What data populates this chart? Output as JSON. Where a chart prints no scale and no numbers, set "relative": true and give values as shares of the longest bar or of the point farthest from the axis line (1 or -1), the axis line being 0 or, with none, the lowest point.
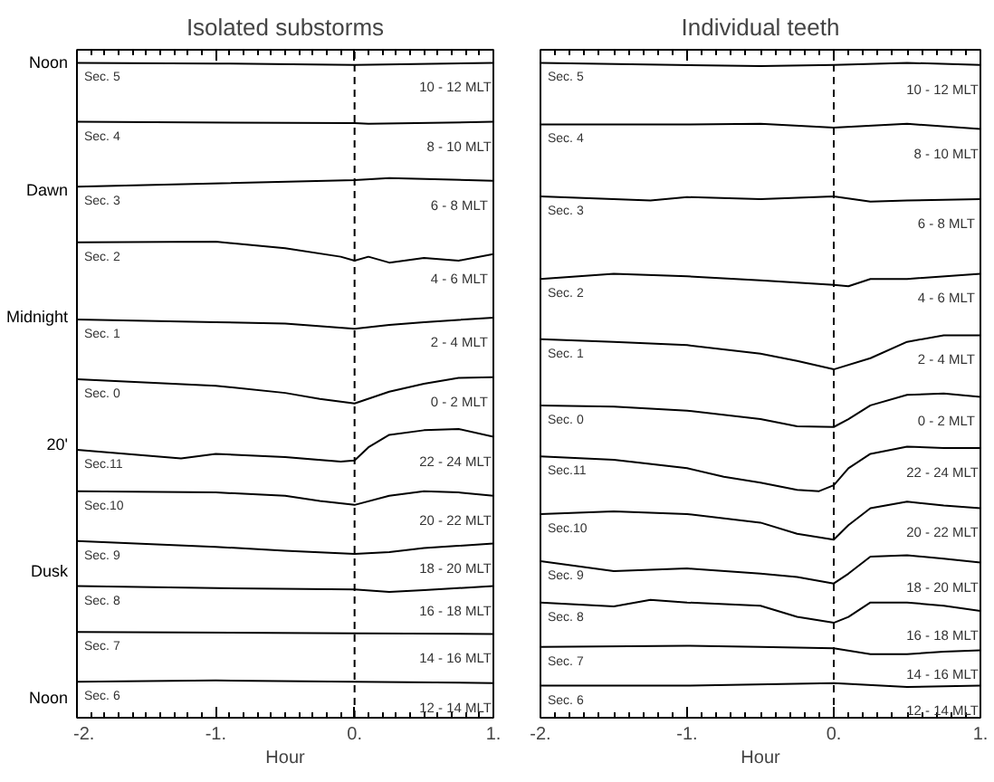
{
  "chart_data": [
    {
      "type": "line",
      "title": "Isolated substorms",
      "xlabel": "Hour",
      "relative": true,
      "xlim": [
        -2,
        1
      ],
      "xticks": [
        {
          "value": -2,
          "label": "-2."
        },
        {
          "value": -1,
          "label": "-1."
        },
        {
          "value": 0,
          "label": "0."
        },
        {
          "value": 1,
          "label": "1."
        }
      ],
      "tick_labels": "x",
      "line_style": "solid",
      "ref_lines": [
        {
          "axis": "x",
          "value": 0,
          "line_style": "dashed",
          "color": "#000000"
        }
      ],
      "series": [
        {
          "name": "Sec. 5",
          "color": "#000000",
          "x": [
            -2,
            -1,
            0,
            1
          ],
          "values": [
            1.0,
            0.999,
            0.997,
            1.0
          ]
        },
        {
          "name": "Sec. 4",
          "color": "#000000",
          "x": [
            -2,
            0,
            0.1,
            1
          ],
          "values": [
            0.91,
            0.908,
            0.907,
            0.91
          ]
        },
        {
          "name": "Sec. 3",
          "color": "#000000",
          "x": [
            -2,
            0,
            0.25,
            1
          ],
          "values": [
            0.811,
            0.821,
            0.824,
            0.82
          ]
        },
        {
          "name": "Sec. 2",
          "color": "#000000",
          "x": [
            -2,
            -1,
            -0.5,
            -0.1,
            0,
            0.1,
            0.25,
            0.5,
            0.75,
            1
          ],
          "values": [
            0.726,
            0.727,
            0.717,
            0.704,
            0.698,
            0.704,
            0.695,
            0.702,
            0.698,
            0.708
          ]
        },
        {
          "name": "Sec. 1",
          "color": "#000000",
          "x": [
            -2,
            -1,
            -0.5,
            0,
            0.25,
            0.5,
            1
          ],
          "values": [
            0.608,
            0.604,
            0.602,
            0.594,
            0.6,
            0.604,
            0.611
          ]
        },
        {
          "name": "Sec. 0",
          "color": "#000000",
          "x": [
            -2,
            -1,
            -0.5,
            -0.25,
            0,
            0.25,
            0.5,
            0.75,
            1
          ],
          "values": [
            0.517,
            0.507,
            0.496,
            0.487,
            0.48,
            0.498,
            0.51,
            0.519,
            0.52
          ]
        },
        {
          "name": "Sec.11",
          "color": "#000000",
          "x": [
            -2,
            -1.25,
            -1,
            -0.5,
            -0.1,
            0,
            0.1,
            0.25,
            0.5,
            0.75,
            1
          ],
          "values": [
            0.409,
            0.396,
            0.403,
            0.398,
            0.391,
            0.393,
            0.413,
            0.432,
            0.439,
            0.441,
            0.429
          ]
        },
        {
          "name": "Sec.10",
          "color": "#000000",
          "x": [
            -2,
            -1,
            -0.5,
            -0.25,
            0,
            0.25,
            0.5,
            0.75,
            1
          ],
          "values": [
            0.346,
            0.344,
            0.339,
            0.331,
            0.325,
            0.339,
            0.346,
            0.344,
            0.339
          ]
        },
        {
          "name": "Sec. 9",
          "color": "#000000",
          "x": [
            -2,
            -1,
            -0.5,
            0,
            0.25,
            0.5,
            1
          ],
          "values": [
            0.27,
            0.261,
            0.255,
            0.25,
            0.253,
            0.259,
            0.266
          ]
        },
        {
          "name": "Sec. 8",
          "color": "#000000",
          "x": [
            -2,
            -1,
            0,
            0.25,
            0.5,
            1
          ],
          "values": [
            0.201,
            0.198,
            0.196,
            0.192,
            0.195,
            0.201
          ]
        },
        {
          "name": "Sec. 7",
          "color": "#000000",
          "x": [
            -2,
            0,
            1
          ],
          "values": [
            0.131,
            0.129,
            0.128
          ]
        },
        {
          "name": "Sec. 6",
          "color": "#000000",
          "x": [
            -2,
            -1,
            0,
            1
          ],
          "values": [
            0.055,
            0.057,
            0.055,
            0.053
          ]
        }
      ],
      "annotations": [
        "10 - 12 MLT",
        "8 - 10 MLT",
        "6 -  8 MLT",
        "4 -  6 MLT",
        "2 -  4 MLT",
        "0 -  2 MLT",
        "22 - 24 MLT",
        "20 - 22 MLT",
        "18 - 20 MLT",
        "16 - 18 MLT",
        "14 - 16 MLT",
        "12 - 14 MLT",
        "Noon",
        "Dawn",
        "Midnight",
        "20'",
        "Dusk",
        "Noon"
      ]
    },
    {
      "type": "line",
      "title": "Individual teeth",
      "xlabel": "Hour",
      "relative": true,
      "xlim": [
        -2,
        1
      ],
      "xticks": [
        {
          "value": -2,
          "label": "-2."
        },
        {
          "value": -1,
          "label": "-1."
        },
        {
          "value": 0,
          "label": "0."
        },
        {
          "value": 1,
          "label": "1."
        }
      ],
      "tick_labels": "x",
      "line_style": "solid",
      "ref_lines": [
        {
          "axis": "x",
          "value": 0,
          "line_style": "dashed",
          "color": "#000000"
        }
      ],
      "series": [
        {
          "name": "Sec. 5",
          "color": "#000000",
          "x": [
            -2,
            -0.5,
            0,
            0.5,
            1
          ],
          "values": [
            1.0,
            0.995,
            0.997,
            1.0,
            0.997
          ]
        },
        {
          "name": "Sec. 4",
          "color": "#000000",
          "x": [
            -2,
            -1,
            -0.5,
            0,
            0.5,
            1
          ],
          "values": [
            0.906,
            0.906,
            0.907,
            0.901,
            0.907,
            0.899
          ]
        },
        {
          "name": "Sec. 3",
          "color": "#000000",
          "x": [
            -2,
            -1.25,
            -1,
            -0.5,
            0,
            0.25,
            0.5,
            1
          ],
          "values": [
            0.796,
            0.79,
            0.795,
            0.792,
            0.796,
            0.788,
            0.79,
            0.792
          ]
        },
        {
          "name": "Sec. 2",
          "color": "#000000",
          "x": [
            -2,
            -1.5,
            -1,
            -0.5,
            0,
            0.1,
            0.25,
            0.5,
            1
          ],
          "values": [
            0.67,
            0.678,
            0.674,
            0.668,
            0.661,
            0.659,
            0.67,
            0.67,
            0.678
          ]
        },
        {
          "name": "Sec. 1",
          "color": "#000000",
          "x": [
            -2,
            -1.5,
            -1,
            -0.5,
            -0.25,
            0,
            0.25,
            0.5,
            0.75,
            1
          ],
          "values": [
            0.578,
            0.574,
            0.569,
            0.556,
            0.545,
            0.532,
            0.549,
            0.574,
            0.584,
            0.584
          ]
        },
        {
          "name": "Sec. 0",
          "color": "#000000",
          "x": [
            -2,
            -1.5,
            -1,
            -0.5,
            -0.25,
            0,
            0.1,
            0.25,
            0.5,
            0.75,
            1
          ],
          "values": [
            0.477,
            0.475,
            0.469,
            0.456,
            0.445,
            0.444,
            0.456,
            0.477,
            0.493,
            0.495,
            0.49
          ]
        },
        {
          "name": "Sec.11",
          "color": "#000000",
          "x": [
            -2,
            -1.5,
            -1,
            -0.75,
            -0.5,
            -0.25,
            -0.1,
            0,
            0.1,
            0.25,
            0.5,
            0.75,
            1
          ],
          "values": [
            0.399,
            0.394,
            0.381,
            0.368,
            0.359,
            0.348,
            0.346,
            0.355,
            0.381,
            0.403,
            0.414,
            0.412,
            0.412
          ]
        },
        {
          "name": "Sec.10",
          "color": "#000000",
          "x": [
            -2,
            -1.5,
            -1,
            -0.5,
            -0.25,
            0,
            0.1,
            0.25,
            0.5,
            0.75,
            1
          ],
          "values": [
            0.311,
            0.315,
            0.311,
            0.298,
            0.281,
            0.272,
            0.294,
            0.32,
            0.33,
            0.324,
            0.32
          ]
        },
        {
          "name": "Sec. 9",
          "color": "#000000",
          "x": [
            -2,
            -1.5,
            -1,
            -0.5,
            -0.25,
            0,
            0.1,
            0.25,
            0.5,
            0.75,
            1
          ],
          "values": [
            0.239,
            0.224,
            0.228,
            0.22,
            0.215,
            0.205,
            0.22,
            0.246,
            0.248,
            0.243,
            0.237
          ]
        },
        {
          "name": "Sec. 8",
          "color": "#000000",
          "x": [
            -2,
            -1.5,
            -1.25,
            -1,
            -0.5,
            -0.25,
            0,
            0.1,
            0.25,
            0.5,
            0.75,
            1
          ],
          "values": [
            0.176,
            0.17,
            0.18,
            0.176,
            0.171,
            0.154,
            0.145,
            0.154,
            0.176,
            0.176,
            0.171,
            0.163
          ]
        },
        {
          "name": "Sec. 7",
          "color": "#000000",
          "x": [
            -2,
            -1,
            -0.5,
            0,
            0.25,
            0.5,
            0.75,
            1
          ],
          "values": [
            0.108,
            0.11,
            0.108,
            0.106,
            0.097,
            0.097,
            0.101,
            0.103
          ]
        },
        {
          "name": "Sec. 6",
          "color": "#000000",
          "x": [
            -2,
            -1,
            0,
            0.5,
            1
          ],
          "values": [
            0.049,
            0.049,
            0.053,
            0.047,
            0.049
          ]
        }
      ],
      "annotations": [
        "10 - 12 MLT",
        "8 - 10 MLT",
        "6 -  8 MLT",
        "4 -  6 MLT",
        "2 -  4 MLT",
        "0 -  2 MLT",
        "22 - 24 MLT",
        "20 - 22 MLT",
        "18 - 20 MLT",
        "16 - 18 MLT",
        "14 - 16 MLT",
        "12 - 14 MLT"
      ]
    }
  ]
}
